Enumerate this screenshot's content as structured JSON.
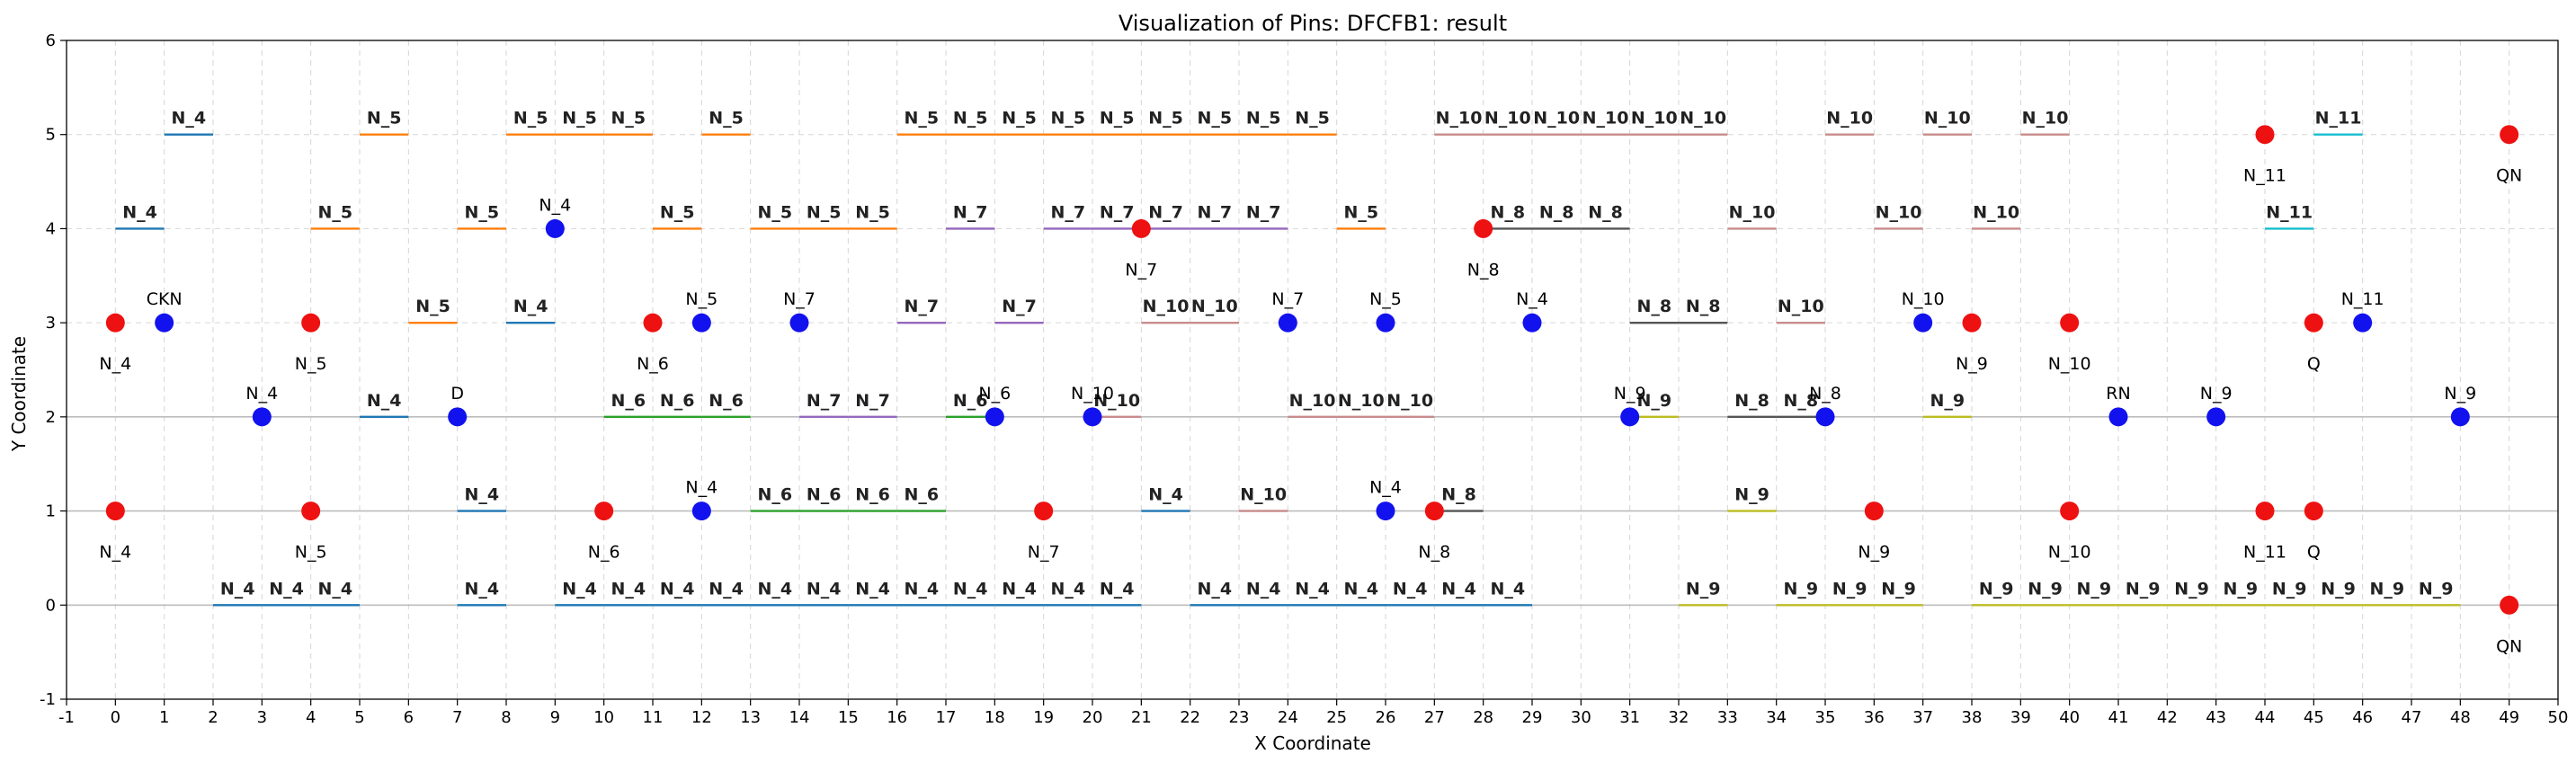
{
  "chart_data": {
    "type": "scatter",
    "title": "Visualization of Pins: DFCFB1: result",
    "xlabel": "X Coordinate",
    "ylabel": "Y Coordinate",
    "xlim": [
      -1,
      50
    ],
    "ylim": [
      -1,
      6
    ],
    "x_ticks": [
      -1,
      0,
      1,
      2,
      3,
      4,
      5,
      6,
      7,
      8,
      9,
      10,
      11,
      12,
      13,
      14,
      15,
      16,
      17,
      18,
      19,
      20,
      21,
      22,
      23,
      24,
      25,
      26,
      27,
      28,
      29,
      30,
      31,
      32,
      33,
      34,
      35,
      36,
      37,
      38,
      39,
      40,
      41,
      42,
      43,
      44,
      45,
      46,
      47,
      48,
      49,
      50
    ],
    "y_ticks": [
      -1,
      0,
      1,
      2,
      3,
      4,
      5,
      6
    ],
    "grid": true,
    "reference_lines_y": [
      0,
      1,
      2
    ],
    "net_colors": {
      "N_4": "#1f77b4",
      "N_5": "#ff7f0e",
      "N_6": "#2ca02c",
      "N_7": "#9467bd",
      "N_8": "#555555",
      "N_9": "#bcbd22",
      "N_10": "#c88b8b",
      "N_11": "#17becf"
    },
    "segments": [
      {
        "net": "N_4",
        "x": [
          1,
          2
        ],
        "y": 5
      },
      {
        "net": "N_5",
        "x": [
          5,
          6
        ],
        "y": 5
      },
      {
        "net": "N_5",
        "x": [
          8,
          9
        ],
        "y": 5
      },
      {
        "net": "N_5",
        "x": [
          9,
          10
        ],
        "y": 5
      },
      {
        "net": "N_5",
        "x": [
          10,
          11
        ],
        "y": 5
      },
      {
        "net": "N_5",
        "x": [
          12,
          13
        ],
        "y": 5
      },
      {
        "net": "N_5",
        "x": [
          16,
          17
        ],
        "y": 5
      },
      {
        "net": "N_5",
        "x": [
          17,
          18
        ],
        "y": 5
      },
      {
        "net": "N_5",
        "x": [
          18,
          19
        ],
        "y": 5
      },
      {
        "net": "N_5",
        "x": [
          19,
          20
        ],
        "y": 5
      },
      {
        "net": "N_5",
        "x": [
          20,
          21
        ],
        "y": 5
      },
      {
        "net": "N_5",
        "x": [
          21,
          22
        ],
        "y": 5
      },
      {
        "net": "N_5",
        "x": [
          22,
          23
        ],
        "y": 5
      },
      {
        "net": "N_5",
        "x": [
          23,
          24
        ],
        "y": 5
      },
      {
        "net": "N_5",
        "x": [
          24,
          25
        ],
        "y": 5
      },
      {
        "net": "N_10",
        "x": [
          27,
          28
        ],
        "y": 5
      },
      {
        "net": "N_10",
        "x": [
          28,
          29
        ],
        "y": 5
      },
      {
        "net": "N_10",
        "x": [
          29,
          30
        ],
        "y": 5
      },
      {
        "net": "N_10",
        "x": [
          30,
          31
        ],
        "y": 5
      },
      {
        "net": "N_10",
        "x": [
          31,
          32
        ],
        "y": 5
      },
      {
        "net": "N_10",
        "x": [
          32,
          33
        ],
        "y": 5
      },
      {
        "net": "N_10",
        "x": [
          35,
          36
        ],
        "y": 5
      },
      {
        "net": "N_10",
        "x": [
          37,
          38
        ],
        "y": 5
      },
      {
        "net": "N_10",
        "x": [
          39,
          40
        ],
        "y": 5
      },
      {
        "net": "N_11",
        "x": [
          45,
          46
        ],
        "y": 5
      },
      {
        "net": "N_4",
        "x": [
          0,
          1
        ],
        "y": 4
      },
      {
        "net": "N_5",
        "x": [
          4,
          5
        ],
        "y": 4
      },
      {
        "net": "N_5",
        "x": [
          7,
          8
        ],
        "y": 4
      },
      {
        "net": "N_5",
        "x": [
          11,
          12
        ],
        "y": 4
      },
      {
        "net": "N_5",
        "x": [
          13,
          14
        ],
        "y": 4
      },
      {
        "net": "N_5",
        "x": [
          14,
          15
        ],
        "y": 4
      },
      {
        "net": "N_5",
        "x": [
          15,
          16
        ],
        "y": 4
      },
      {
        "net": "N_7",
        "x": [
          17,
          18
        ],
        "y": 4
      },
      {
        "net": "N_7",
        "x": [
          19,
          20
        ],
        "y": 4
      },
      {
        "net": "N_7",
        "x": [
          20,
          21
        ],
        "y": 4
      },
      {
        "net": "N_7",
        "x": [
          21,
          22
        ],
        "y": 4
      },
      {
        "net": "N_7",
        "x": [
          22,
          23
        ],
        "y": 4
      },
      {
        "net": "N_7",
        "x": [
          23,
          24
        ],
        "y": 4
      },
      {
        "net": "N_5",
        "x": [
          25,
          26
        ],
        "y": 4
      },
      {
        "net": "N_8",
        "x": [
          28,
          29
        ],
        "y": 4
      },
      {
        "net": "N_8",
        "x": [
          29,
          30
        ],
        "y": 4
      },
      {
        "net": "N_8",
        "x": [
          30,
          31
        ],
        "y": 4
      },
      {
        "net": "N_10",
        "x": [
          33,
          34
        ],
        "y": 4
      },
      {
        "net": "N_10",
        "x": [
          36,
          37
        ],
        "y": 4
      },
      {
        "net": "N_10",
        "x": [
          38,
          39
        ],
        "y": 4
      },
      {
        "net": "N_11",
        "x": [
          44,
          45
        ],
        "y": 4
      },
      {
        "net": "N_5",
        "x": [
          6,
          7
        ],
        "y": 3
      },
      {
        "net": "N_4",
        "x": [
          8,
          9
        ],
        "y": 3
      },
      {
        "net": "N_7",
        "x": [
          16,
          17
        ],
        "y": 3
      },
      {
        "net": "N_7",
        "x": [
          18,
          19
        ],
        "y": 3
      },
      {
        "net": "N_10",
        "x": [
          21,
          22
        ],
        "y": 3
      },
      {
        "net": "N_10",
        "x": [
          22,
          23
        ],
        "y": 3
      },
      {
        "net": "N_8",
        "x": [
          31,
          32
        ],
        "y": 3
      },
      {
        "net": "N_8",
        "x": [
          32,
          33
        ],
        "y": 3
      },
      {
        "net": "N_10",
        "x": [
          34,
          35
        ],
        "y": 3
      },
      {
        "net": "N_4",
        "x": [
          5,
          6
        ],
        "y": 2
      },
      {
        "net": "N_6",
        "x": [
          10,
          11
        ],
        "y": 2
      },
      {
        "net": "N_6",
        "x": [
          11,
          12
        ],
        "y": 2
      },
      {
        "net": "N_6",
        "x": [
          12,
          13
        ],
        "y": 2
      },
      {
        "net": "N_7",
        "x": [
          14,
          15
        ],
        "y": 2
      },
      {
        "net": "N_7",
        "x": [
          15,
          16
        ],
        "y": 2
      },
      {
        "net": "N_6",
        "x": [
          17,
          18
        ],
        "y": 2
      },
      {
        "net": "N_10",
        "x": [
          20,
          21
        ],
        "y": 2
      },
      {
        "net": "N_10",
        "x": [
          24,
          25
        ],
        "y": 2
      },
      {
        "net": "N_10",
        "x": [
          25,
          26
        ],
        "y": 2
      },
      {
        "net": "N_10",
        "x": [
          26,
          27
        ],
        "y": 2
      },
      {
        "net": "N_9",
        "x": [
          31,
          32
        ],
        "y": 2
      },
      {
        "net": "N_8",
        "x": [
          33,
          34
        ],
        "y": 2
      },
      {
        "net": "N_8",
        "x": [
          34,
          35
        ],
        "y": 2
      },
      {
        "net": "N_9",
        "x": [
          37,
          38
        ],
        "y": 2
      },
      {
        "net": "N_4",
        "x": [
          7,
          8
        ],
        "y": 1
      },
      {
        "net": "N_6",
        "x": [
          13,
          14
        ],
        "y": 1
      },
      {
        "net": "N_6",
        "x": [
          14,
          15
        ],
        "y": 1
      },
      {
        "net": "N_6",
        "x": [
          15,
          16
        ],
        "y": 1
      },
      {
        "net": "N_6",
        "x": [
          16,
          17
        ],
        "y": 1
      },
      {
        "net": "N_4",
        "x": [
          21,
          22
        ],
        "y": 1
      },
      {
        "net": "N_10",
        "x": [
          23,
          24
        ],
        "y": 1
      },
      {
        "net": "N_8",
        "x": [
          27,
          28
        ],
        "y": 1
      },
      {
        "net": "N_9",
        "x": [
          33,
          34
        ],
        "y": 1
      },
      {
        "net": "N_4",
        "x": [
          2,
          3
        ],
        "y": 0
      },
      {
        "net": "N_4",
        "x": [
          3,
          4
        ],
        "y": 0
      },
      {
        "net": "N_4",
        "x": [
          4,
          5
        ],
        "y": 0
      },
      {
        "net": "N_4",
        "x": [
          7,
          8
        ],
        "y": 0
      },
      {
        "net": "N_4",
        "x": [
          9,
          10
        ],
        "y": 0
      },
      {
        "net": "N_4",
        "x": [
          10,
          11
        ],
        "y": 0
      },
      {
        "net": "N_4",
        "x": [
          11,
          12
        ],
        "y": 0
      },
      {
        "net": "N_4",
        "x": [
          12,
          13
        ],
        "y": 0
      },
      {
        "net": "N_4",
        "x": [
          13,
          14
        ],
        "y": 0
      },
      {
        "net": "N_4",
        "x": [
          14,
          15
        ],
        "y": 0
      },
      {
        "net": "N_4",
        "x": [
          15,
          16
        ],
        "y": 0
      },
      {
        "net": "N_4",
        "x": [
          16,
          17
        ],
        "y": 0
      },
      {
        "net": "N_4",
        "x": [
          17,
          18
        ],
        "y": 0
      },
      {
        "net": "N_4",
        "x": [
          18,
          19
        ],
        "y": 0
      },
      {
        "net": "N_4",
        "x": [
          19,
          20
        ],
        "y": 0
      },
      {
        "net": "N_4",
        "x": [
          20,
          21
        ],
        "y": 0
      },
      {
        "net": "N_4",
        "x": [
          22,
          23
        ],
        "y": 0
      },
      {
        "net": "N_4",
        "x": [
          23,
          24
        ],
        "y": 0
      },
      {
        "net": "N_4",
        "x": [
          24,
          25
        ],
        "y": 0
      },
      {
        "net": "N_4",
        "x": [
          25,
          26
        ],
        "y": 0
      },
      {
        "net": "N_4",
        "x": [
          26,
          27
        ],
        "y": 0
      },
      {
        "net": "N_4",
        "x": [
          27,
          28
        ],
        "y": 0
      },
      {
        "net": "N_4",
        "x": [
          28,
          29
        ],
        "y": 0
      },
      {
        "net": "N_9",
        "x": [
          32,
          33
        ],
        "y": 0
      },
      {
        "net": "N_9",
        "x": [
          34,
          35
        ],
        "y": 0
      },
      {
        "net": "N_9",
        "x": [
          35,
          36
        ],
        "y": 0
      },
      {
        "net": "N_9",
        "x": [
          36,
          37
        ],
        "y": 0
      },
      {
        "net": "N_9",
        "x": [
          38,
          39
        ],
        "y": 0
      },
      {
        "net": "N_9",
        "x": [
          39,
          40
        ],
        "y": 0
      },
      {
        "net": "N_9",
        "x": [
          40,
          41
        ],
        "y": 0
      },
      {
        "net": "N_9",
        "x": [
          41,
          42
        ],
        "y": 0
      },
      {
        "net": "N_9",
        "x": [
          42,
          43
        ],
        "y": 0
      },
      {
        "net": "N_9",
        "x": [
          43,
          44
        ],
        "y": 0
      },
      {
        "net": "N_9",
        "x": [
          44,
          45
        ],
        "y": 0
      },
      {
        "net": "N_9",
        "x": [
          45,
          46
        ],
        "y": 0
      },
      {
        "net": "N_9",
        "x": [
          46,
          47
        ],
        "y": 0
      },
      {
        "net": "N_9",
        "x": [
          47,
          48
        ],
        "y": 0
      }
    ],
    "pins_red": [
      {
        "x": 44,
        "y": 5,
        "label": "N_11"
      },
      {
        "x": 49,
        "y": 5,
        "label": "QN"
      },
      {
        "x": 21,
        "y": 4,
        "label": "N_7"
      },
      {
        "x": 28,
        "y": 4,
        "label": "N_8"
      },
      {
        "x": 0,
        "y": 3,
        "label": "N_4"
      },
      {
        "x": 4,
        "y": 3,
        "label": "N_5"
      },
      {
        "x": 11,
        "y": 3,
        "label": "N_6"
      },
      {
        "x": 38,
        "y": 3,
        "label": "N_9"
      },
      {
        "x": 40,
        "y": 3,
        "label": "N_10"
      },
      {
        "x": 45,
        "y": 3,
        "label": "Q"
      },
      {
        "x": 0,
        "y": 1,
        "label": "N_4"
      },
      {
        "x": 4,
        "y": 1,
        "label": "N_5"
      },
      {
        "x": 10,
        "y": 1,
        "label": "N_6"
      },
      {
        "x": 19,
        "y": 1,
        "label": "N_7"
      },
      {
        "x": 27,
        "y": 1,
        "label": "N_8"
      },
      {
        "x": 36,
        "y": 1,
        "label": "N_9"
      },
      {
        "x": 40,
        "y": 1,
        "label": "N_10"
      },
      {
        "x": 44,
        "y": 1,
        "label": "N_11"
      },
      {
        "x": 45,
        "y": 1,
        "label": "Q"
      },
      {
        "x": 49,
        "y": 0,
        "label": "QN"
      }
    ],
    "pins_blue": [
      {
        "x": 9,
        "y": 4,
        "label": "N_4"
      },
      {
        "x": 1,
        "y": 3,
        "label": "CKN"
      },
      {
        "x": 12,
        "y": 3,
        "label": "N_5"
      },
      {
        "x": 14,
        "y": 3,
        "label": "N_7"
      },
      {
        "x": 24,
        "y": 3,
        "label": "N_7"
      },
      {
        "x": 26,
        "y": 3,
        "label": "N_5"
      },
      {
        "x": 29,
        "y": 3,
        "label": "N_4"
      },
      {
        "x": 37,
        "y": 3,
        "label": "N_10"
      },
      {
        "x": 46,
        "y": 3,
        "label": "N_11"
      },
      {
        "x": 3,
        "y": 2,
        "label": "N_4"
      },
      {
        "x": 7,
        "y": 2,
        "label": "D"
      },
      {
        "x": 18,
        "y": 2,
        "label": "N_6"
      },
      {
        "x": 20,
        "y": 2,
        "label": "N_10"
      },
      {
        "x": 31,
        "y": 2,
        "label": "N_9"
      },
      {
        "x": 35,
        "y": 2,
        "label": "N_8"
      },
      {
        "x": 41,
        "y": 2,
        "label": "RN"
      },
      {
        "x": 43,
        "y": 2,
        "label": "N_9"
      },
      {
        "x": 48,
        "y": 2,
        "label": "N_9"
      },
      {
        "x": 12,
        "y": 1,
        "label": "N_4"
      },
      {
        "x": 26,
        "y": 1,
        "label": "N_4"
      }
    ]
  }
}
